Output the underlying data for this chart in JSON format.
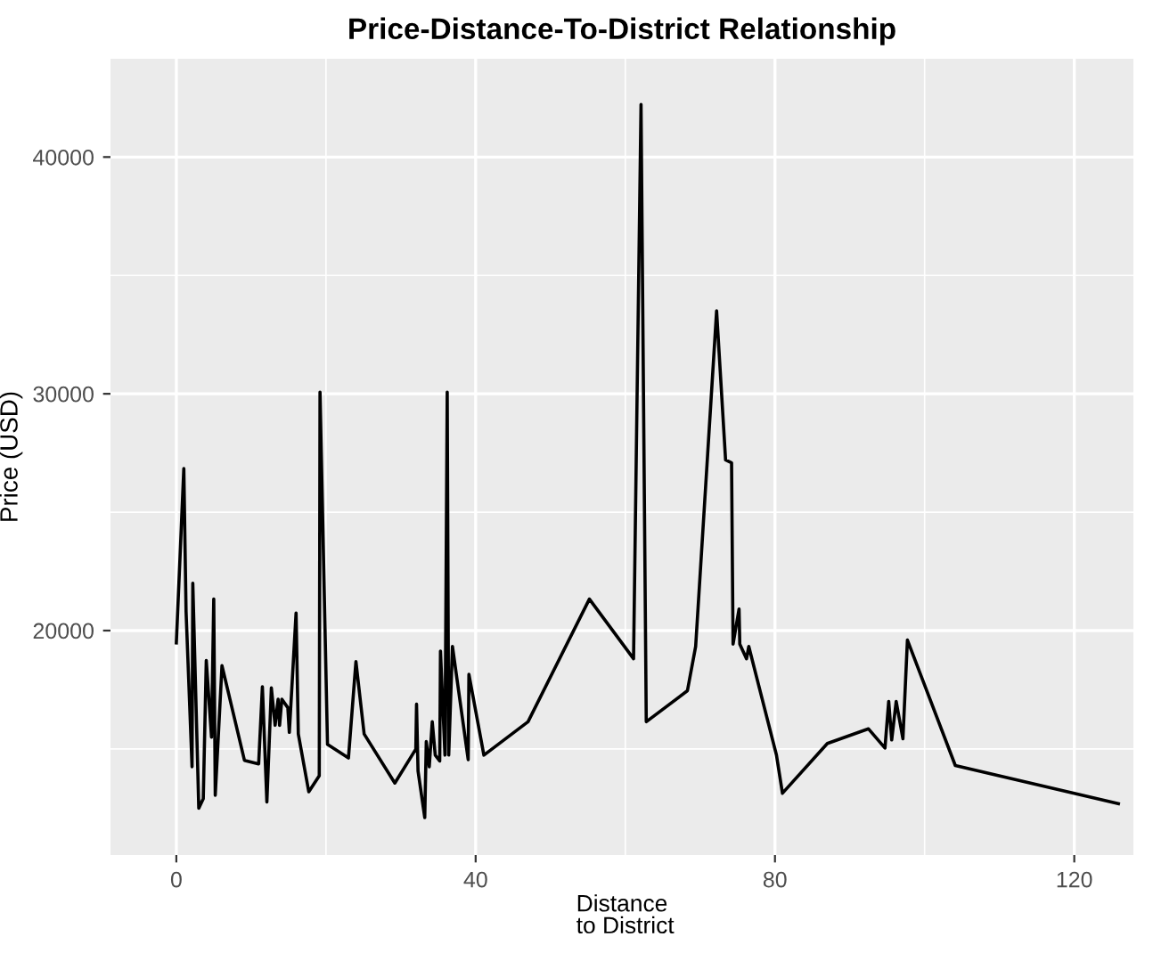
{
  "chart_data": {
    "type": "line",
    "title": "Price-Distance-To-District Relationship",
    "xlabel": "Distance\n to District",
    "ylabel": "Price (USD)",
    "x": [
      0,
      1,
      1.3,
      2.1,
      2.2,
      3.0,
      3.6,
      4.0,
      4.7,
      5.0,
      5.2,
      6.1,
      9.1,
      11.0,
      11.5,
      12.1,
      12.7,
      13.2,
      13.6,
      13.8,
      14.1,
      14.9,
      15.1,
      16.0,
      16.3,
      17.7,
      19.1,
      19.2,
      20.2,
      23.0,
      24.0,
      25.1,
      29.2,
      32.0,
      32.1,
      32.3,
      33.2,
      33.4,
      33.8,
      34.2,
      34.6,
      35.2,
      35.3,
      35.9,
      36.2,
      36.4,
      36.9,
      39.0,
      39.1,
      41.1,
      47.0,
      55.2,
      61.1,
      62.1,
      62.8,
      68.3,
      69.4,
      72.2,
      73.4,
      74.2,
      74.4,
      75.2,
      75.3,
      76.2,
      76.5,
      80.2,
      81.0,
      87.0,
      92.5,
      94.7,
      95.2,
      95.6,
      96.2,
      97.1,
      97.7,
      104.1,
      125.9
    ],
    "series": [
      {
        "color": "#000000",
        "values": [
          19480,
          26840,
          20800,
          14250,
          22000,
          12500,
          12900,
          18740,
          15500,
          21330,
          13040,
          18520,
          14520,
          14370,
          17630,
          12760,
          17580,
          16000,
          17100,
          16000,
          17100,
          16740,
          15700,
          20740,
          15630,
          13190,
          13870,
          30070,
          15190,
          14620,
          18690,
          15630,
          13560,
          14990,
          16890,
          14070,
          12100,
          15310,
          14250,
          16150,
          14740,
          14490,
          19130,
          14740,
          30070,
          14740,
          19330,
          14550,
          18150,
          14740,
          16150,
          21330,
          18810,
          42220,
          16150,
          17460,
          19330,
          33500,
          27210,
          27090,
          19430,
          20910,
          19430,
          18810,
          19330,
          14740,
          13130,
          15230,
          15850,
          15040,
          17010,
          15380,
          17010,
          15430,
          19600,
          14300,
          12690
        ]
      }
    ],
    "xlim": [
      -8.8,
      127.9
    ],
    "ylim": [
      10520,
      44150
    ],
    "xticks": [
      0,
      40,
      80,
      120
    ],
    "yticks": [
      20000,
      30000,
      40000
    ],
    "grid": true,
    "legend": false,
    "marker": "none",
    "line_style": "solid"
  }
}
